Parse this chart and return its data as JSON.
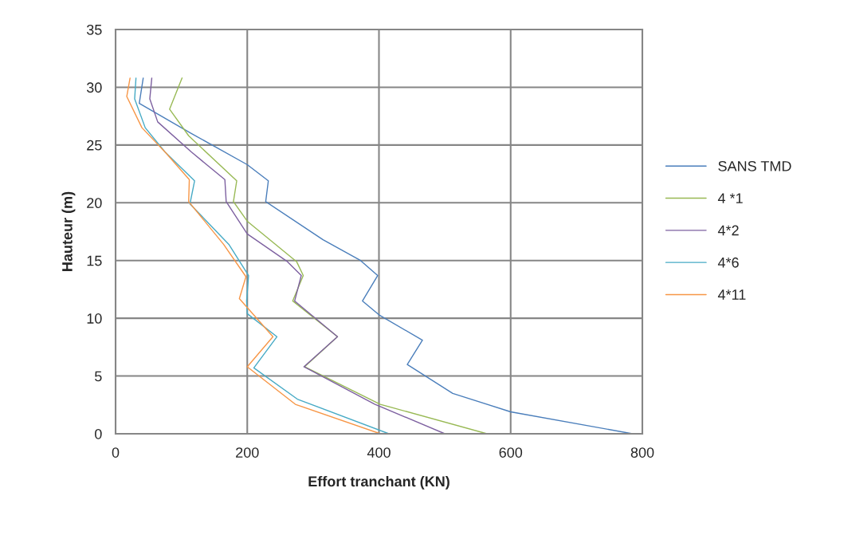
{
  "chart_data": {
    "type": "line",
    "xlabel": "Effort tranchant (KN)",
    "ylabel": "Hauteur (m)",
    "xlim": [
      0,
      800
    ],
    "xticks": [
      0,
      200,
      400,
      600,
      800
    ],
    "ylim": [
      0,
      35
    ],
    "yticks": [
      0,
      5,
      10,
      15,
      20,
      25,
      30,
      35
    ],
    "grid": true,
    "legend": "right",
    "marker": "none",
    "line_style": "solid",
    "series": [
      {
        "name": "SANS TMD",
        "color": "#4a7ebb",
        "x": [
          785,
          600,
          512,
          443,
          466,
          400,
          375,
          398,
          372,
          315,
          228,
          232,
          200,
          115,
          36,
          42
        ],
        "values": [
          0,
          1.9,
          3.5,
          6.0,
          8.1,
          10.3,
          11.5,
          13.7,
          15.0,
          16.8,
          20.1,
          21.9,
          23.3,
          26.0,
          28.6,
          30.8
        ]
      },
      {
        "name": "4 *1",
        "color": "#98b954",
        "x": [
          564,
          402,
          287,
          337,
          269,
          285,
          275,
          200,
          179,
          184,
          111,
          82,
          101
        ],
        "values": [
          0,
          2.55,
          5.8,
          8.4,
          11.5,
          13.7,
          14.9,
          18.4,
          20.1,
          21.9,
          25.8,
          28.1,
          30.8
        ]
      },
      {
        "name": "4*2",
        "color": "#7d60a0",
        "x": [
          500,
          394,
          286,
          337,
          272,
          282,
          261,
          200,
          168,
          166,
          115,
          64,
          52,
          55
        ],
        "values": [
          0,
          2.55,
          5.8,
          8.4,
          11.5,
          13.7,
          14.9,
          17.3,
          20.1,
          22,
          24.4,
          27,
          29,
          30.8
        ]
      },
      {
        "name": "4*6",
        "color": "#46aac5",
        "x": [
          415,
          276,
          210,
          245,
          200,
          199,
          202,
          172,
          113,
          120,
          75,
          45,
          29,
          31
        ],
        "values": [
          0,
          3.0,
          5.7,
          8.4,
          10.4,
          11.5,
          13.7,
          16.4,
          19.9,
          21.9,
          24.4,
          26.5,
          29,
          30.8
        ]
      },
      {
        "name": "4*11",
        "color": "#f79646",
        "x": [
          402,
          273,
          200,
          239,
          188,
          198,
          164,
          111,
          112,
          75,
          40,
          17,
          22
        ],
        "values": [
          0,
          2.55,
          5.8,
          8.4,
          11.7,
          13.6,
          16.4,
          20.1,
          22,
          24.4,
          26.5,
          29.2,
          30.8
        ]
      }
    ]
  }
}
